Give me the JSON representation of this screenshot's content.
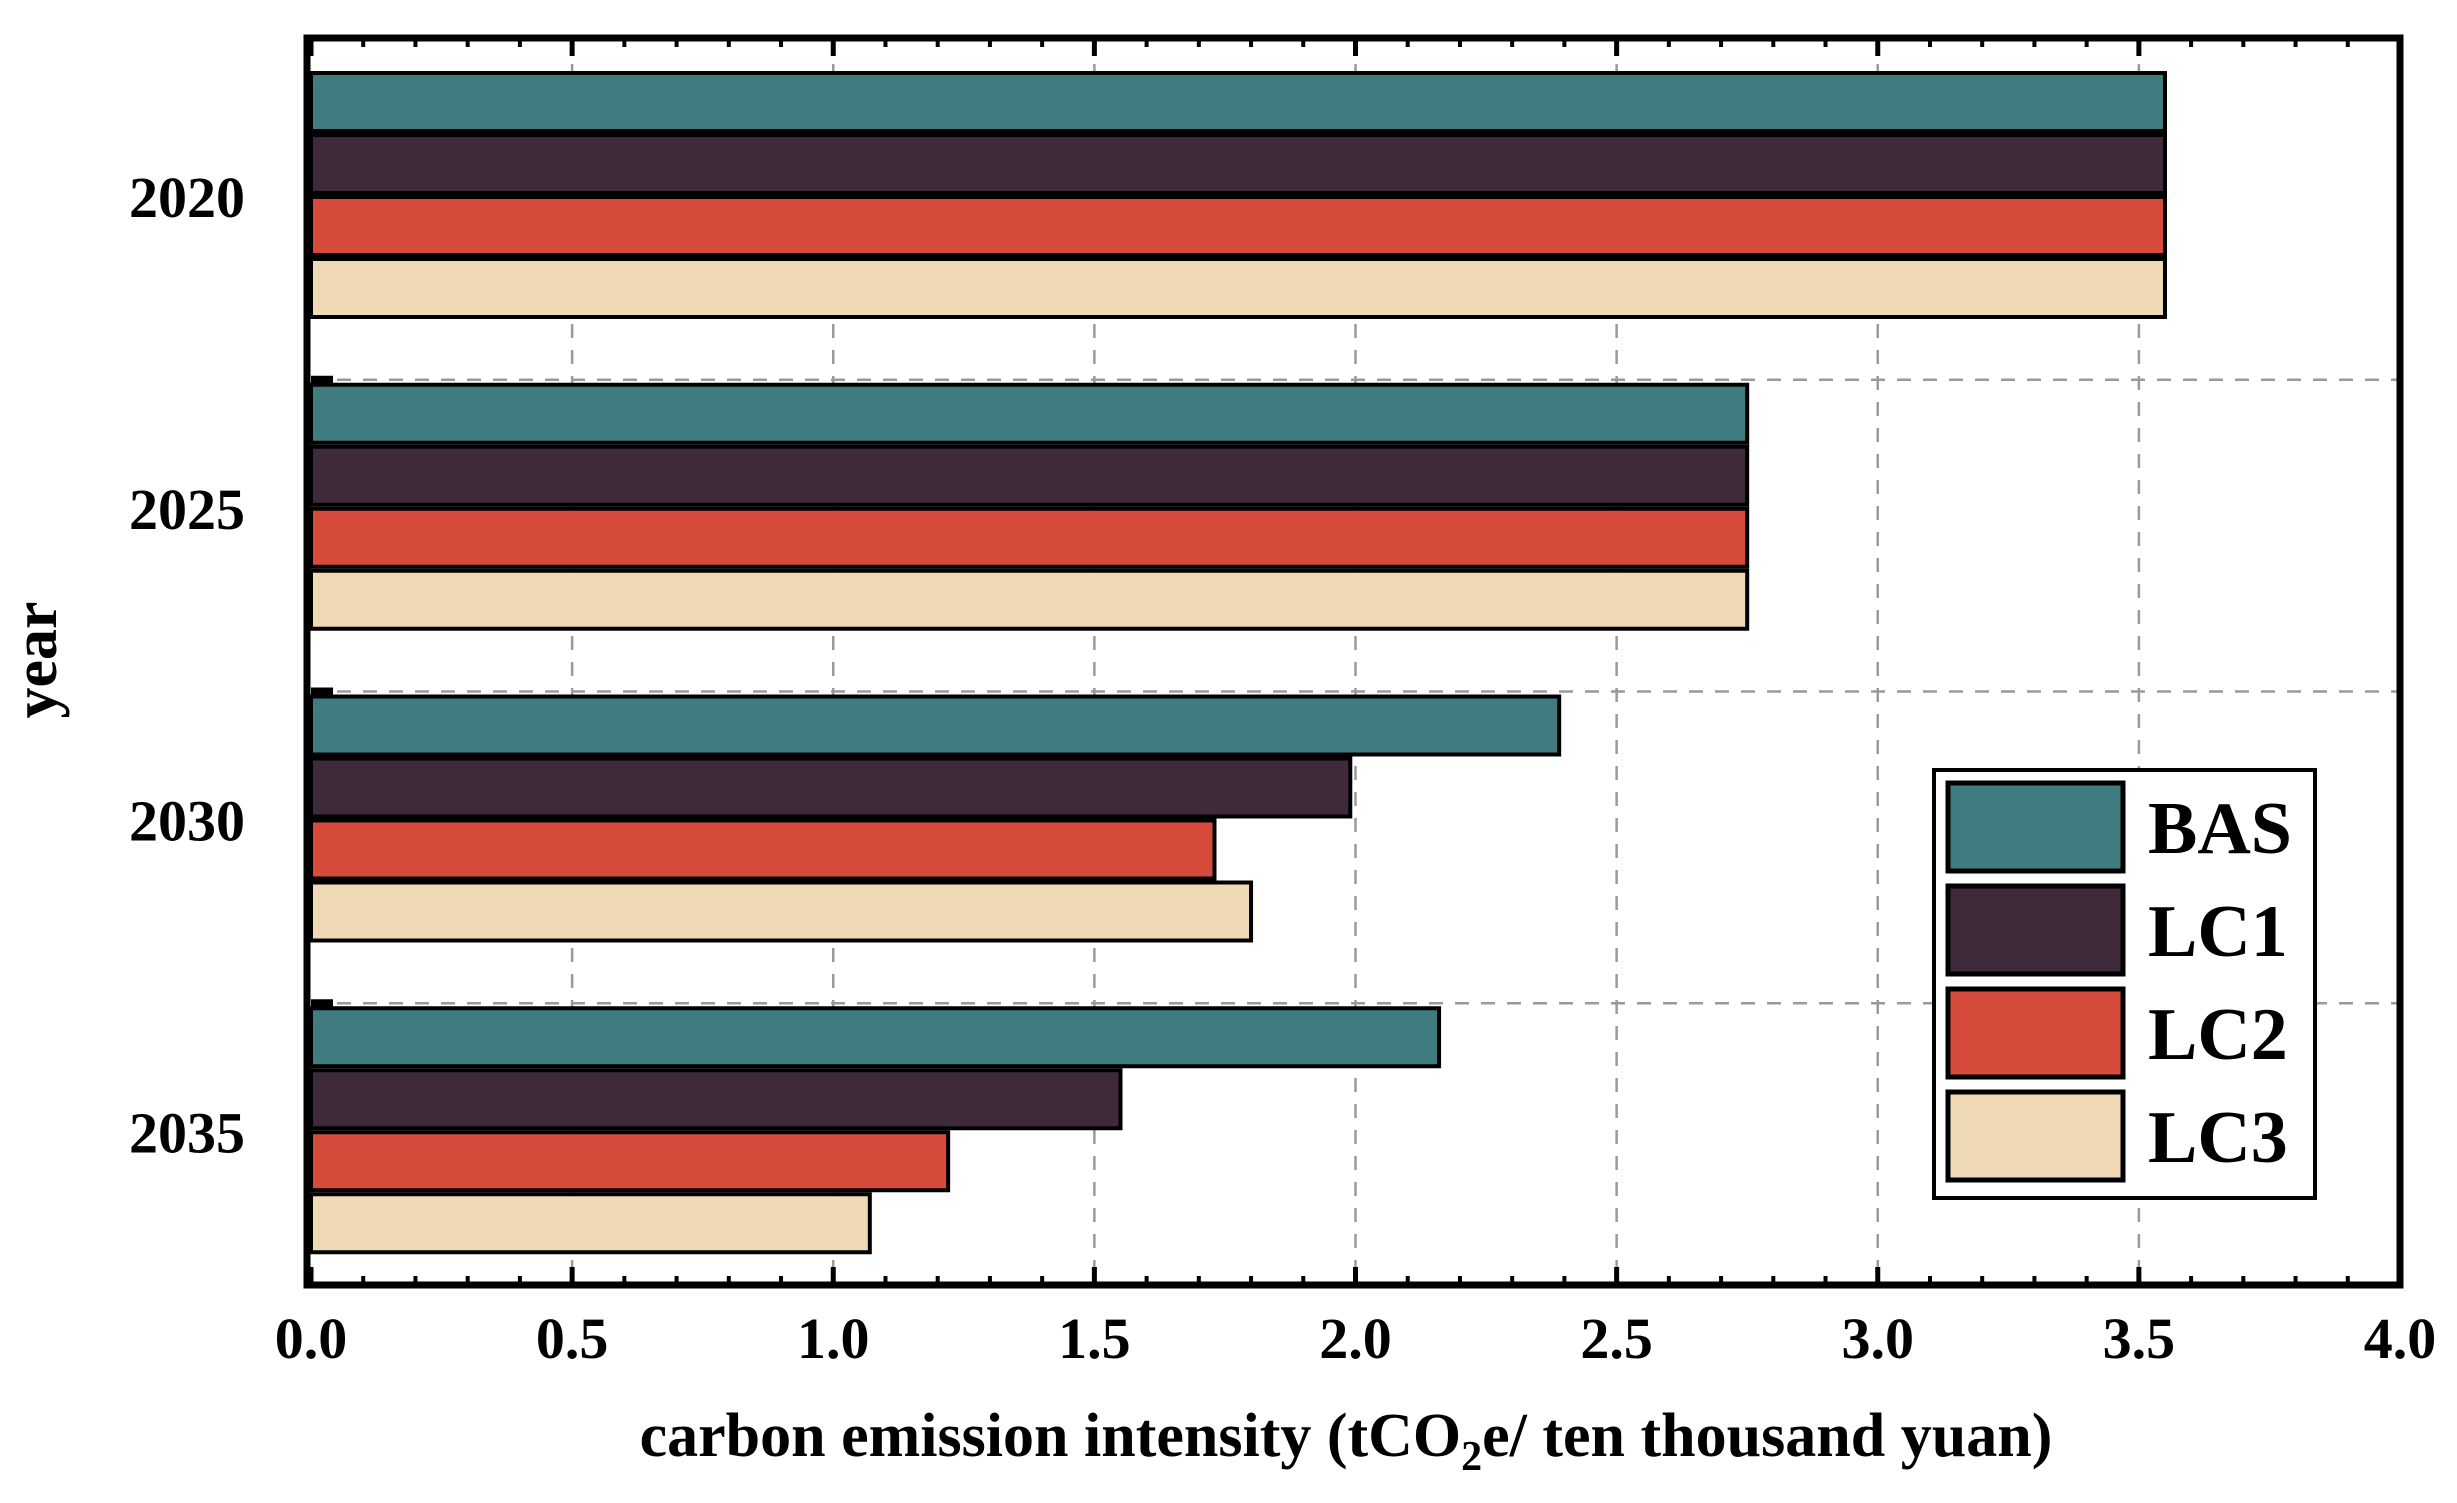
{
  "chart_data": {
    "type": "bar",
    "orientation": "horizontal",
    "categories": [
      "2020",
      "2025",
      "2030",
      "2035"
    ],
    "series": [
      {
        "name": "BAS",
        "color": "#3f7b7f",
        "values": [
          3.55,
          2.75,
          2.39,
          2.16
        ]
      },
      {
        "name": "LC1",
        "color": "#3f2a3c",
        "values": [
          3.55,
          2.75,
          1.99,
          1.55
        ]
      },
      {
        "name": "LC2",
        "color": "#d64b3c",
        "values": [
          3.55,
          2.75,
          1.73,
          1.22
        ]
      },
      {
        "name": "LC3",
        "color": "#f0d9b5",
        "values": [
          3.55,
          2.75,
          1.8,
          1.07
        ]
      }
    ],
    "xlabel_main": "carbon emission intensity (tCO",
    "xlabel_sub": "2",
    "xlabel_tail": "e/ ten thousand yuan)",
    "ylabel": "year",
    "xlim": [
      0.0,
      4.0
    ],
    "xticks": [
      "0.0",
      "0.5",
      "1.0",
      "1.5",
      "2.0",
      "2.5",
      "3.0",
      "3.5",
      "4.0"
    ],
    "grid": "dashed",
    "legend_position": "bottom-right"
  }
}
